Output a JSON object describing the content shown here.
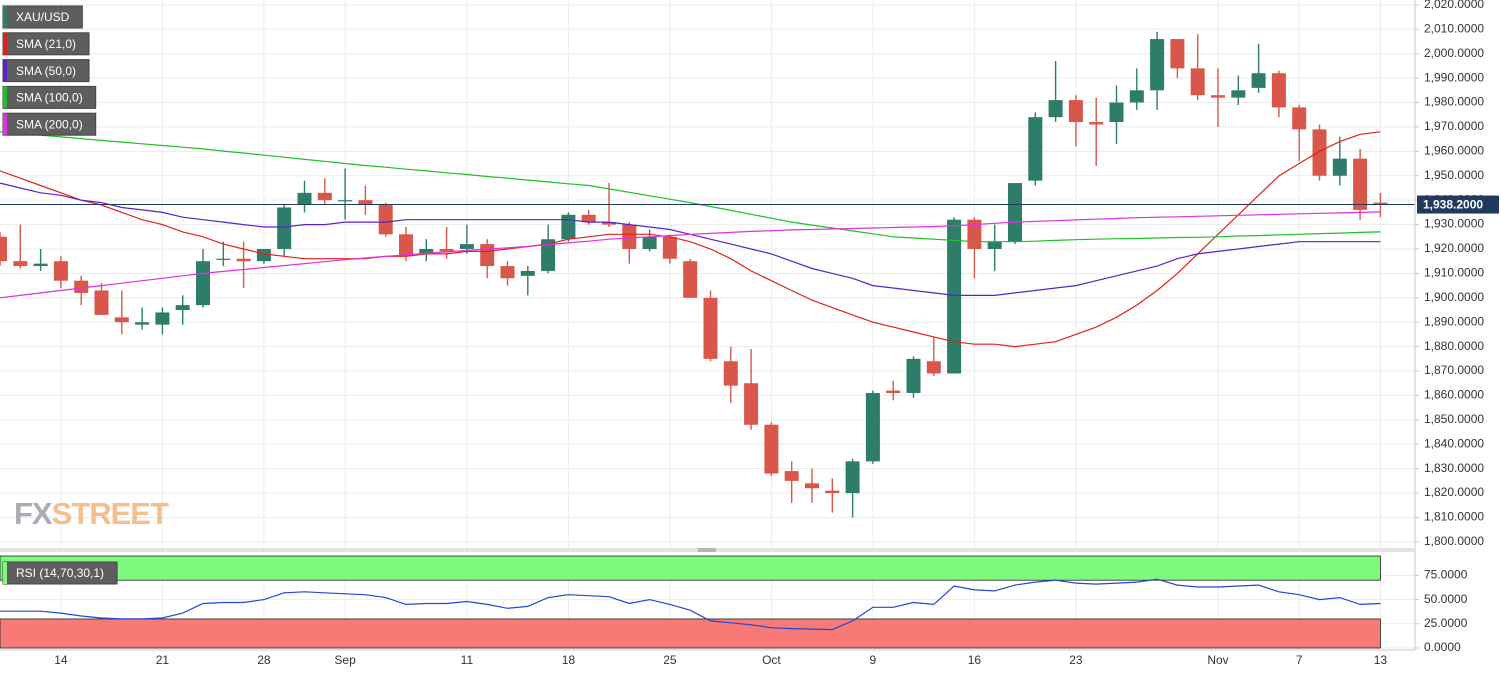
{
  "chart_data": [
    {
      "type": "candlestick",
      "categories": [
        null,
        null,
        null,
        "14",
        null,
        null,
        null,
        null,
        "21",
        null,
        null,
        null,
        null,
        "28",
        null,
        null,
        null,
        "Sep",
        null,
        null,
        null,
        null,
        null,
        "11",
        null,
        null,
        null,
        null,
        "18",
        null,
        null,
        null,
        null,
        "25",
        null,
        null,
        null,
        null,
        "Oct",
        null,
        null,
        null,
        null,
        "9",
        null,
        null,
        null,
        null,
        "16",
        null,
        null,
        null,
        null,
        "23",
        null,
        null,
        null,
        null,
        null,
        null,
        "Nov",
        null,
        null,
        null,
        "7",
        null,
        null,
        null,
        "13"
      ],
      "series": [
        {
          "name": "XAU/USD",
          "color": "#2e7d6a",
          "up_color": "#2e7d6a",
          "down_color": "#d9574a",
          "open": [
            1925,
            1915,
            1913,
            1915,
            1907,
            1903,
            1892,
            1889,
            1889,
            1895,
            1897,
            1916,
            1916,
            1915,
            1920,
            1938,
            1943,
            1940,
            1940,
            1938,
            1926,
            1918,
            1920,
            1920,
            1922,
            1913,
            1909,
            1911,
            1924,
            1934,
            1931,
            1930,
            1920,
            1925,
            1915,
            1900,
            1874,
            1865,
            1848,
            1829,
            1824,
            1821,
            1820,
            1833,
            1862,
            1861,
            1874,
            1869,
            1932,
            1920,
            1923,
            1948,
            1974,
            1981,
            1972,
            1972,
            1980,
            1985,
            2006,
            1994,
            1983,
            1982,
            1986,
            1992,
            1978,
            1969,
            1950,
            1957,
            1939
          ],
          "high": [
            1927,
            1930,
            1920,
            1917,
            1909,
            1906,
            1903,
            1896,
            1896,
            1901,
            1920,
            1923,
            1923,
            1920,
            1938,
            1948,
            1949,
            1953,
            1946,
            1939,
            1929,
            1924,
            1929,
            1930,
            1924,
            1915,
            1913,
            1930,
            1935,
            1936,
            1947,
            1931,
            1928,
            1926,
            1916,
            1903,
            1880,
            1879,
            1849,
            1833,
            1830,
            1826,
            1834,
            1862,
            1866,
            1876,
            1884,
            1933,
            1933,
            1930,
            1947,
            1976,
            1997,
            1983,
            1982,
            1987,
            1994,
            2009,
            2006,
            2008,
            1994,
            1991,
            2004,
            1993,
            1979,
            1971,
            1966,
            1961,
            1943
          ],
          "low": [
            1913,
            1912,
            1911,
            1904,
            1897,
            1893,
            1885,
            1887,
            1885,
            1889,
            1896,
            1913,
            1904,
            1914,
            1917,
            1935,
            1938,
            1932,
            1934,
            1925,
            1915,
            1915,
            1916,
            1918,
            1908,
            1905,
            1901,
            1910,
            1923,
            1930,
            1929,
            1914,
            1919,
            1914,
            1900,
            1874,
            1857,
            1846,
            1827,
            1816,
            1816,
            1812,
            1810,
            1832,
            1858,
            1859,
            1868,
            1869,
            1908,
            1911,
            1922,
            1946,
            1972,
            1962,
            1954,
            1963,
            1977,
            1977,
            1990,
            1981,
            1970,
            1979,
            1984,
            1974,
            1956,
            1948,
            1946,
            1932,
            1933
          ],
          "close": [
            1915,
            1913,
            1914,
            1907,
            1902,
            1893,
            1890,
            1890,
            1894,
            1897,
            1915,
            1916,
            1915,
            1920,
            1937,
            1943,
            1940,
            1940,
            1938,
            1926,
            1917,
            1920,
            1919,
            1922,
            1913,
            1908,
            1911,
            1924,
            1934,
            1931,
            1930,
            1920,
            1925,
            1916,
            1900,
            1875,
            1864,
            1848,
            1828,
            1825,
            1822,
            1820,
            1833,
            1861,
            1861,
            1875,
            1869,
            1932,
            1920,
            1923,
            1947,
            1974,
            1981,
            1972,
            1971,
            1980,
            1985,
            2006,
            1994,
            1983,
            1982,
            1985,
            1992,
            1978,
            1969,
            1950,
            1957,
            1936,
            1938.2
          ]
        },
        {
          "name": "SMA (21,0)",
          "type": "line",
          "color": "#e3211c",
          "values": [
            1952,
            1949,
            1946,
            1943,
            1940,
            1938,
            1935,
            1932,
            1930,
            1927,
            1925,
            1922,
            1920,
            1918,
            1917,
            1916,
            1916,
            1916,
            1916,
            1917,
            1917,
            1918,
            1918,
            1919,
            1919,
            1920,
            1921,
            1922,
            1924,
            1925,
            1926,
            1926,
            1926,
            1925,
            1923,
            1920,
            1916,
            1911,
            1907,
            1903,
            1899,
            1896,
            1893,
            1890,
            1888,
            1886,
            1884,
            1882,
            1881,
            1881,
            1880,
            1881,
            1882,
            1885,
            1888,
            1892,
            1897,
            1903,
            1910,
            1918,
            1926,
            1934,
            1942,
            1950,
            1955,
            1960,
            1964,
            1967,
            1968
          ]
        },
        {
          "name": "SMA (50,0)",
          "type": "line",
          "color": "#5a22c8",
          "values": [
            1947,
            1945,
            1943,
            1942,
            1940,
            1939,
            1937,
            1936,
            1935,
            1933,
            1932,
            1931,
            1930,
            1929,
            1929,
            1930,
            1930,
            1931,
            1931,
            1931,
            1932,
            1932,
            1932,
            1932,
            1932,
            1932,
            1932,
            1932,
            1932,
            1931,
            1931,
            1930,
            1929,
            1928,
            1926,
            1924,
            1922,
            1920,
            1918,
            1915,
            1912,
            1910,
            1908,
            1905,
            1904,
            1903,
            1902,
            1901,
            1901,
            1901,
            1902,
            1903,
            1904,
            1905,
            1907,
            1909,
            1911,
            1913,
            1916,
            1918,
            1919,
            1920,
            1921,
            1922,
            1923,
            1923,
            1923,
            1923,
            1923
          ]
        },
        {
          "name": "SMA (100,0)",
          "type": "line",
          "color": "#1fbf2a",
          "values": [
            1968,
            1967.3,
            1966.6,
            1965.9,
            1965.2,
            1964.5,
            1963.8,
            1963.1,
            1962.4,
            1961.7,
            1961,
            1960.1,
            1959.3,
            1958.4,
            1957.6,
            1956.7,
            1955.9,
            1955,
            1954.2,
            1953.5,
            1952.7,
            1952,
            1951.2,
            1950.5,
            1949.7,
            1949,
            1948.2,
            1947.5,
            1946.7,
            1946,
            1944.6,
            1943.2,
            1941.8,
            1940.4,
            1939,
            1937.4,
            1935.8,
            1934.2,
            1932.6,
            1931,
            1929.8,
            1928.6,
            1927.4,
            1926.2,
            1925,
            1924.5,
            1924,
            1923.5,
            1923,
            1923,
            1923,
            1923.2,
            1923.5,
            1923.8,
            1924,
            1924.2,
            1924.3,
            1924.5,
            1924.7,
            1924.8,
            1925,
            1925.3,
            1925.5,
            1925.8,
            1926,
            1926.3,
            1926.5,
            1926.8,
            1927
          ]
        },
        {
          "name": "SMA (200,0)",
          "type": "line",
          "color": "#e32fe3",
          "values": [
            1900,
            1901,
            1902,
            1903,
            1904,
            1905,
            1906,
            1907,
            1908,
            1909,
            1910,
            1910.8,
            1911.6,
            1912.4,
            1913.2,
            1914,
            1914.8,
            1915.6,
            1916.3,
            1917,
            1917.6,
            1918.2,
            1918.8,
            1919.4,
            1920,
            1920.5,
            1921,
            1921.8,
            1922.5,
            1923.2,
            1924,
            1924.5,
            1925,
            1925.5,
            1926,
            1926.4,
            1926.8,
            1927.2,
            1927.5,
            1927.8,
            1928,
            1928.2,
            1928.4,
            1928.6,
            1928.8,
            1929,
            1929.2,
            1929.5,
            1930,
            1930.5,
            1931,
            1931.3,
            1931.6,
            1931.9,
            1932.2,
            1932.5,
            1932.8,
            1933,
            1933.2,
            1933.4,
            1933.6,
            1933.8,
            1934,
            1934.2,
            1934.4,
            1934.6,
            1934.8,
            1935,
            1935.2
          ]
        }
      ],
      "last_price": {
        "value": 1938.2,
        "label": "1,938.2000",
        "color": "#1f3a5c"
      },
      "ylim": [
        1797.5,
        2022
      ],
      "yticks": [
        {
          "value": 1800,
          "label": "1,800.0000"
        },
        {
          "value": 1810,
          "label": "1,810.0000"
        },
        {
          "value": 1820,
          "label": "1,820.0000"
        },
        {
          "value": 1830,
          "label": "1,830.0000"
        },
        {
          "value": 1840,
          "label": "1,840.0000"
        },
        {
          "value": 1850,
          "label": "1,850.0000"
        },
        {
          "value": 1860,
          "label": "1,860.0000"
        },
        {
          "value": 1870,
          "label": "1,870.0000"
        },
        {
          "value": 1880,
          "label": "1,880.0000"
        },
        {
          "value": 1890,
          "label": "1,890.0000"
        },
        {
          "value": 1900,
          "label": "1,900.0000"
        },
        {
          "value": 1910,
          "label": "1,910.0000"
        },
        {
          "value": 1920,
          "label": "1,920.0000"
        },
        {
          "value": 1930,
          "label": "1,930.0000"
        },
        {
          "value": 1940,
          "label": "1,940.0000"
        },
        {
          "value": 1950,
          "label": "1,950.0000"
        },
        {
          "value": 1960,
          "label": "1,960.0000"
        },
        {
          "value": 1970,
          "label": "1,970.0000"
        },
        {
          "value": 1980,
          "label": "1,980.0000"
        },
        {
          "value": 1990,
          "label": "1,990.0000"
        },
        {
          "value": 2000,
          "label": "2,000.0000"
        },
        {
          "value": 2010,
          "label": "2,010.0000"
        },
        {
          "value": 2020,
          "label": "2,020.0000"
        }
      ],
      "grid": true,
      "watermark": [
        "FX",
        "STREET"
      ]
    },
    {
      "type": "line",
      "series": [
        {
          "name": "RSI (14,70,30,1)",
          "color": "#2347d6",
          "values": [
            38,
            38,
            38,
            36,
            33,
            31,
            30,
            30,
            31,
            36,
            46,
            47,
            47,
            50,
            57,
            58,
            57,
            56,
            55,
            52,
            45,
            46,
            46,
            48,
            45,
            41,
            43,
            52,
            55,
            54,
            53,
            46,
            50,
            45,
            39,
            28,
            26,
            24,
            21,
            20,
            19.5,
            19,
            28,
            42,
            42,
            47,
            45,
            64,
            60,
            59,
            65,
            68,
            70,
            67,
            66,
            67,
            68,
            71,
            65,
            63,
            63,
            64,
            65,
            58,
            55,
            50,
            52,
            45,
            46
          ]
        }
      ],
      "bands": [
        {
          "from": 70,
          "to": 95,
          "color": "#7dfa7d"
        },
        {
          "from": 0,
          "to": 30,
          "color": "#f87a77"
        }
      ],
      "ylim": [
        0,
        95
      ],
      "yticks": [
        {
          "value": 0,
          "label": "0.0000"
        },
        {
          "value": 25,
          "label": "25.0000"
        },
        {
          "value": 50,
          "label": "50.0000"
        },
        {
          "value": 75,
          "label": "75.0000"
        }
      ],
      "grid": true
    }
  ]
}
